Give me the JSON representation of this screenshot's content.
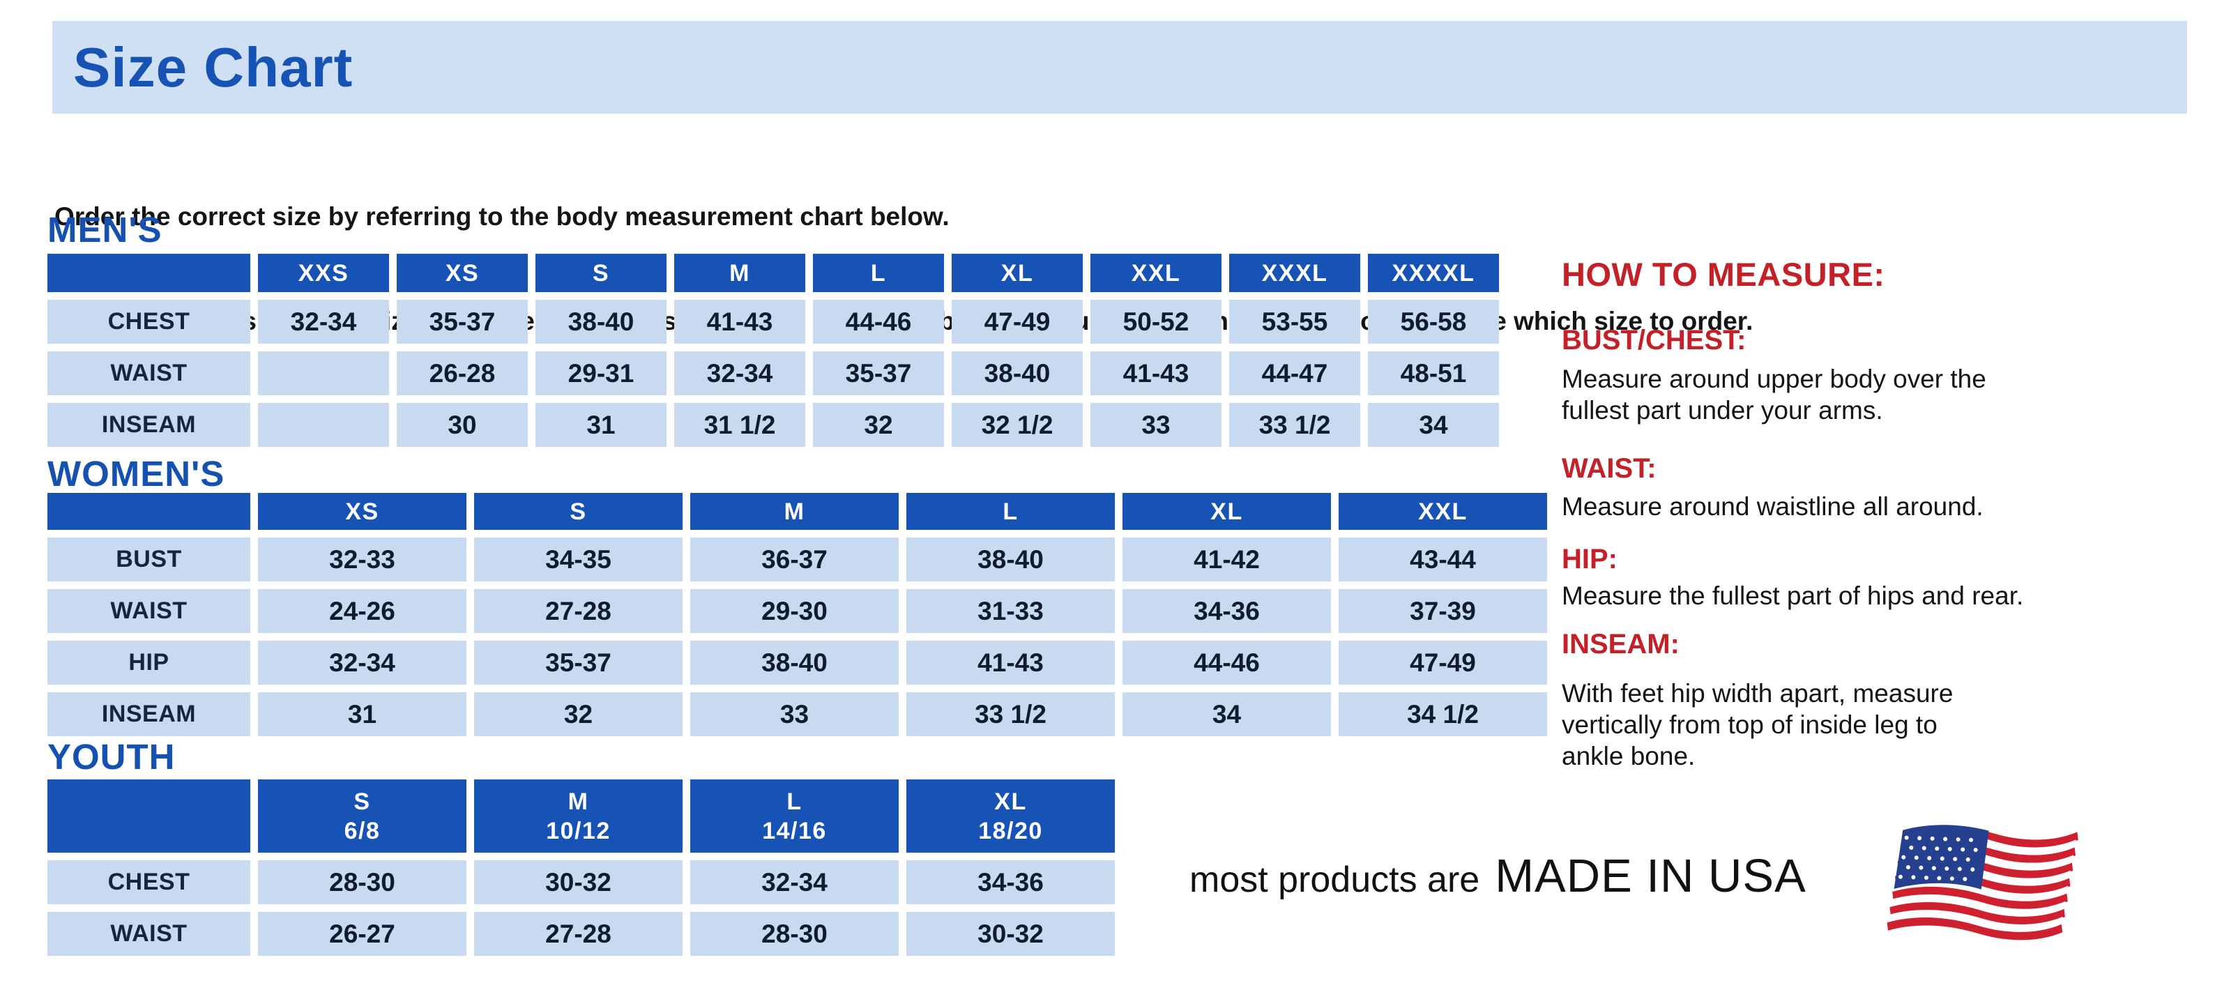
{
  "banner": {
    "title": "Size Chart"
  },
  "intro": {
    "line1": "Order the correct size by referring to the body measurement chart below.",
    "line2": "Measurements shown on size chart are body measurements.  Find your body measurements on the chart to determine which size to order."
  },
  "sections": [
    {
      "title": "MEN'S",
      "table": {
        "columns": [
          "XXS",
          "XS",
          "S",
          "M",
          "L",
          "XL",
          "XXL",
          "XXXL",
          "XXXXL"
        ],
        "rows": [
          {
            "label": "CHEST",
            "values": [
              "32-34",
              "35-37",
              "38-40",
              "41-43",
              "44-46",
              "47-49",
              "50-52",
              "53-55",
              "56-58"
            ]
          },
          {
            "label": "WAIST",
            "values": [
              "",
              "26-28",
              "29-31",
              "32-34",
              "35-37",
              "38-40",
              "41-43",
              "44-47",
              "48-51"
            ]
          },
          {
            "label": "INSEAM",
            "values": [
              "",
              "30",
              "31",
              "31 1/2",
              "32",
              "32 1/2",
              "33",
              "33 1/2",
              "34"
            ]
          }
        ]
      }
    },
    {
      "title": "WOMEN'S",
      "table": {
        "columns": [
          "XS",
          "S",
          "M",
          "L",
          "XL",
          "XXL"
        ],
        "rows": [
          {
            "label": "BUST",
            "values": [
              "32-33",
              "34-35",
              "36-37",
              "38-40",
              "41-42",
              "43-44"
            ]
          },
          {
            "label": "WAIST",
            "values": [
              "24-26",
              "27-28",
              "29-30",
              "31-33",
              "34-36",
              "37-39"
            ]
          },
          {
            "label": "HIP",
            "values": [
              "32-34",
              "35-37",
              "38-40",
              "41-43",
              "44-46",
              "47-49"
            ]
          },
          {
            "label": "INSEAM",
            "values": [
              "31",
              "32",
              "33",
              "33 1/2",
              "34",
              "34 1/2"
            ]
          }
        ]
      }
    },
    {
      "title": "YOUTH",
      "table": {
        "columns": [
          "S\n6/8",
          "M\n10/12",
          "L\n14/16",
          "XL\n18/20"
        ],
        "rows": [
          {
            "label": "CHEST",
            "values": [
              "28-30",
              "30-32",
              "32-34",
              "34-36"
            ]
          },
          {
            "label": "WAIST",
            "values": [
              "26-27",
              "27-28",
              "28-30",
              "30-32"
            ]
          }
        ]
      }
    }
  ],
  "how_to_measure": {
    "title": "HOW TO MEASURE:",
    "items": [
      {
        "label": "BUST/CHEST:",
        "text": "Measure around upper body over the\nfullest part under your arms."
      },
      {
        "label": "WAIST:",
        "text": "Measure around waistline all around."
      },
      {
        "label": "HIP:",
        "text": "Measure the fullest part of hips and rear."
      },
      {
        "label": "INSEAM:",
        "text": "With feet hip width apart, measure\nvertically from top of inside leg to\nankle bone."
      }
    ]
  },
  "footer": {
    "prefix": "most products are",
    "emphasis": "MADE IN USA",
    "flag_icon": "us-flag-icon"
  },
  "colors": {
    "banner_bg": "#cfe0f5",
    "heading_blue": "#1552b0",
    "table_header_blue": "#1753b4",
    "table_cell_blue": "#c8daf0",
    "accent_red": "#c42028",
    "flag_red": "#cf2030",
    "flag_blue": "#25408f"
  }
}
